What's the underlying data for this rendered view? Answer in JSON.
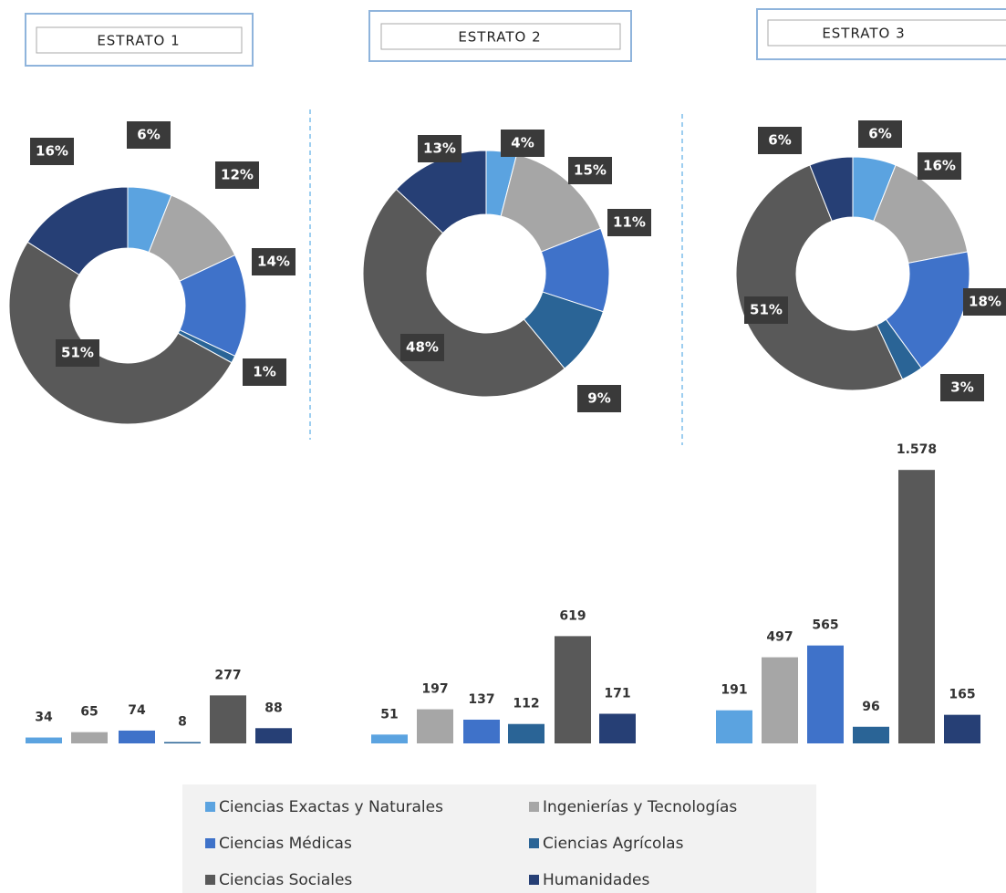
{
  "legend": {
    "categories": [
      "Ciencias Exactas y Naturales",
      "Ingenierías y Tecnologías",
      "Ciencias Médicas",
      "Ciencias Agrícolas",
      "Ciencias Sociales",
      "Humanidades"
    ],
    "colors": [
      "#5ba3e0",
      "#a6a6a6",
      "#3f72c9",
      "#2a6496",
      "#595959",
      "#263f75"
    ]
  },
  "chart_data": [
    {
      "type": "donut",
      "title": "ESTRATO 1",
      "values": [
        6,
        12,
        14,
        1,
        51,
        16
      ],
      "value_labels": [
        "6%",
        "12%",
        "14%",
        "1%",
        "51%",
        "16%"
      ]
    },
    {
      "type": "donut",
      "title": "ESTRATO 2",
      "values": [
        4,
        15,
        11,
        9,
        48,
        13
      ],
      "value_labels": [
        "4%",
        "15%",
        "11%",
        "9%",
        "48%",
        "13%"
      ]
    },
    {
      "type": "donut",
      "title": "ESTRATO 3",
      "values": [
        6,
        16,
        18,
        3,
        51,
        6
      ],
      "value_labels": [
        "6%",
        "16%",
        "18%",
        "3%",
        "51%",
        "6%"
      ]
    },
    {
      "type": "bar",
      "values": [
        34,
        65,
        74,
        8,
        277,
        88
      ]
    },
    {
      "type": "bar",
      "values": [
        51,
        197,
        137,
        112,
        619,
        171
      ]
    },
    {
      "type": "bar",
      "values": [
        191,
        497,
        565,
        96,
        1578,
        165
      ],
      "value_labels": [
        "191",
        "497",
        "565",
        "96",
        "1.578",
        "165"
      ]
    }
  ]
}
